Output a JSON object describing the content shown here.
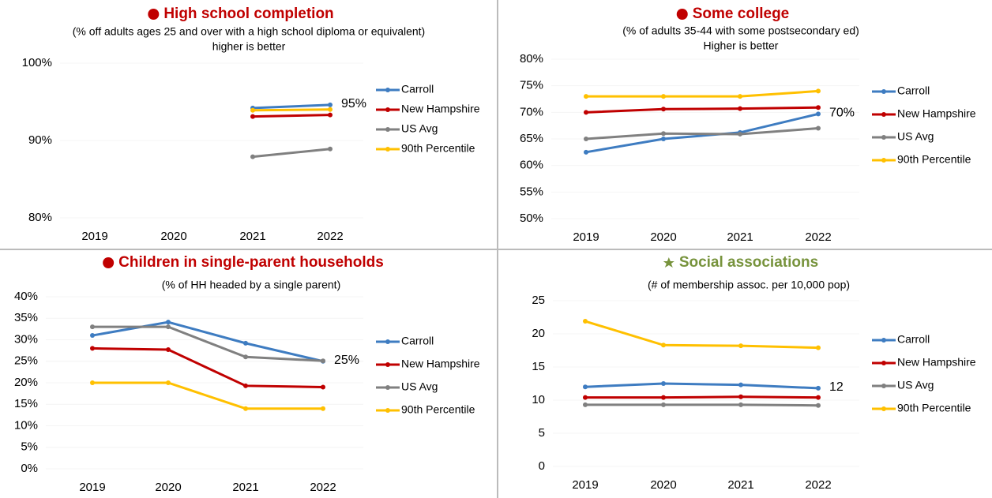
{
  "chart_data": [
    {
      "type": "line",
      "title": "High school completion",
      "subtitle": [
        "(% off adults ages 25 and over with a high school diploma or equivalent)",
        "higher is better"
      ],
      "title_color": "#c00000",
      "categories": [
        "2019",
        "2020",
        "2021",
        "2022"
      ],
      "series": [
        {
          "name": "Carroll",
          "color": "#3e7cc1",
          "values": [
            null,
            null,
            94.2,
            94.6
          ]
        },
        {
          "name": "New Hampshire",
          "color": "#c00000",
          "values": [
            null,
            null,
            93.1,
            93.3
          ]
        },
        {
          "name": "US Avg",
          "color": "#808080",
          "values": [
            null,
            null,
            87.9,
            88.9
          ]
        },
        {
          "name": "90th Percentile",
          "color": "#ffc000",
          "values": [
            null,
            null,
            93.9,
            94.0
          ]
        }
      ],
      "ylim": [
        80,
        100
      ],
      "yticks": [
        {
          "value": 80,
          "label": "80%"
        },
        {
          "value": 90,
          "label": "90%"
        },
        {
          "value": 100,
          "label": "100%"
        }
      ],
      "annotation": "95%"
    },
    {
      "type": "line",
      "title": "Some college",
      "subtitle": [
        "(% of adults 35-44 with some postsecondary ed)",
        "Higher is better"
      ],
      "title_color": "#c00000",
      "categories": [
        "2019",
        "2020",
        "2021",
        "2022"
      ],
      "series": [
        {
          "name": "Carroll",
          "color": "#3e7cc1",
          "values": [
            62.5,
            65,
            66.2,
            69.7
          ]
        },
        {
          "name": "New Hampshire",
          "color": "#c00000",
          "values": [
            70,
            70.6,
            70.7,
            70.9
          ]
        },
        {
          "name": "US Avg",
          "color": "#808080",
          "values": [
            65,
            66,
            65.9,
            67
          ]
        },
        {
          "name": "90th Percentile",
          "color": "#ffc000",
          "values": [
            73,
            73,
            73,
            74
          ]
        }
      ],
      "ylim": [
        50,
        80
      ],
      "yticks": [
        {
          "value": 50,
          "label": "50%"
        },
        {
          "value": 55,
          "label": "55%"
        },
        {
          "value": 60,
          "label": "60%"
        },
        {
          "value": 65,
          "label": "65%"
        },
        {
          "value": 70,
          "label": "70%"
        },
        {
          "value": 75,
          "label": "75%"
        },
        {
          "value": 80,
          "label": "80%"
        }
      ],
      "annotation": "70%"
    },
    {
      "type": "line",
      "title": "Children in single-parent households",
      "subtitle": [
        "(% of HH headed by a single parent)"
      ],
      "title_color": "#c00000",
      "categories": [
        "2019",
        "2020",
        "2021",
        "2022"
      ],
      "series": [
        {
          "name": "Carroll",
          "color": "#3e7cc1",
          "values": [
            31,
            34.1,
            29.2,
            25
          ]
        },
        {
          "name": "New Hampshire",
          "color": "#c00000",
          "values": [
            28,
            27.7,
            19.3,
            19
          ]
        },
        {
          "name": "US Avg",
          "color": "#808080",
          "values": [
            33,
            33,
            26,
            25.1
          ]
        },
        {
          "name": "90th Percentile",
          "color": "#ffc000",
          "values": [
            20,
            20,
            14,
            14
          ]
        }
      ],
      "ylim": [
        0,
        40
      ],
      "yticks": [
        {
          "value": 0,
          "label": "0%"
        },
        {
          "value": 5,
          "label": "5%"
        },
        {
          "value": 10,
          "label": "10%"
        },
        {
          "value": 15,
          "label": "15%"
        },
        {
          "value": 20,
          "label": "20%"
        },
        {
          "value": 25,
          "label": "25%"
        },
        {
          "value": 30,
          "label": "30%"
        },
        {
          "value": 35,
          "label": "35%"
        },
        {
          "value": 40,
          "label": "40%"
        }
      ],
      "annotation": "25%"
    },
    {
      "type": "line",
      "title": "Social associations",
      "subtitle": [
        "(# of membership assoc. per 10,000 pop)"
      ],
      "title_color": "#77933c",
      "categories": [
        "2019",
        "2020",
        "2021",
        "2022"
      ],
      "series": [
        {
          "name": "Carroll",
          "color": "#3e7cc1",
          "values": [
            12,
            12.5,
            12.3,
            11.8
          ]
        },
        {
          "name": "New Hampshire",
          "color": "#c00000",
          "values": [
            10.4,
            10.4,
            10.5,
            10.4
          ]
        },
        {
          "name": "US Avg",
          "color": "#808080",
          "values": [
            9.3,
            9.3,
            9.3,
            9.2
          ]
        },
        {
          "name": "90th Percentile",
          "color": "#ffc000",
          "values": [
            21.9,
            18.3,
            18.2,
            17.9
          ]
        }
      ],
      "ylim": [
        0,
        25
      ],
      "yticks": [
        0,
        5,
        10,
        15,
        20,
        25
      ],
      "annotation": "12"
    }
  ]
}
